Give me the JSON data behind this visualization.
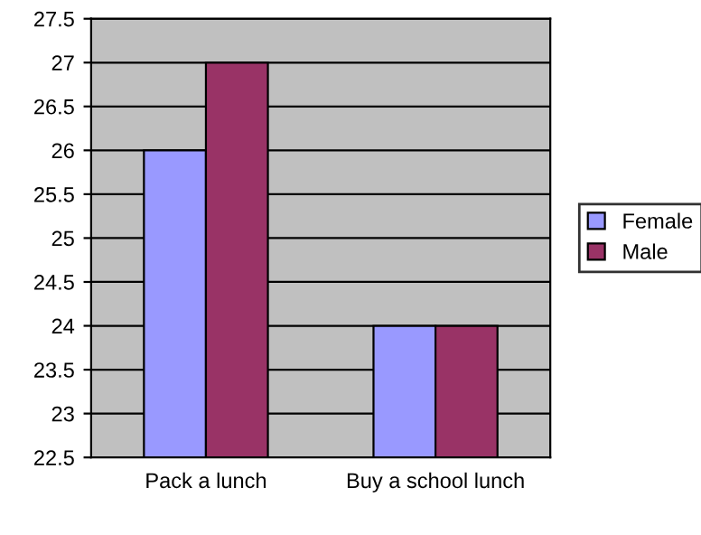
{
  "chart_data": {
    "type": "bar",
    "categories": [
      "Pack a lunch",
      "Buy a school lunch"
    ],
    "series": [
      {
        "name": "Female",
        "color": "#9999ff",
        "values": [
          26,
          24
        ]
      },
      {
        "name": "Male",
        "color": "#993366",
        "values": [
          27,
          24
        ]
      }
    ],
    "ylim": [
      22.5,
      27.5
    ],
    "yticks": [
      22.5,
      23,
      23.5,
      24,
      24.5,
      25,
      25.5,
      26,
      26.5,
      27,
      27.5
    ],
    "grid": "y",
    "legend": "right"
  }
}
